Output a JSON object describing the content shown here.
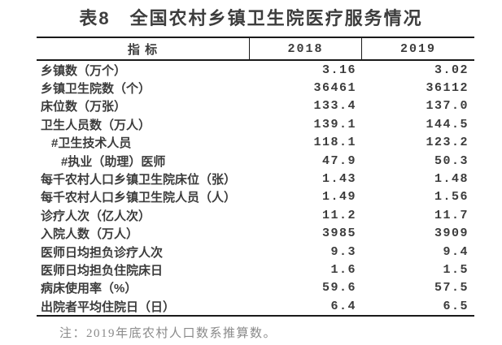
{
  "title": "表8　全国农村乡镇卫生院医疗服务情况",
  "table": {
    "header": {
      "indicator": "指 标",
      "year_2018": "2018",
      "year_2019": "2019"
    },
    "rows": [
      {
        "label": "乡镇数（万个）",
        "indent": 0,
        "y2018": "3.16",
        "y2019": "3.02"
      },
      {
        "label": "乡镇卫生院数（个）",
        "indent": 0,
        "y2018": "36461",
        "y2019": "36112"
      },
      {
        "label": "床位数（万张）",
        "indent": 0,
        "y2018": "133.4",
        "y2019": "137.0"
      },
      {
        "label": "卫生人员数（万人）",
        "indent": 0,
        "y2018": "139.1",
        "y2019": "144.5"
      },
      {
        "label": "#卫生技术人员",
        "indent": 1,
        "y2018": "118.1",
        "y2019": "123.2"
      },
      {
        "label": "#执业（助理）医师",
        "indent": 2,
        "y2018": "47.9",
        "y2019": "50.3"
      },
      {
        "label": "每千农村人口乡镇卫生院床位（张）",
        "indent": 0,
        "y2018": "1.43",
        "y2019": "1.48"
      },
      {
        "label": "每千农村人口乡镇卫生院人员（人）",
        "indent": 0,
        "y2018": "1.49",
        "y2019": "1.56"
      },
      {
        "label": "诊疗人次（亿人次）",
        "indent": 0,
        "y2018": "11.2",
        "y2019": "11.7"
      },
      {
        "label": "入院人数（万人）",
        "indent": 0,
        "y2018": "3985",
        "y2019": "3909"
      },
      {
        "label": "医师日均担负诊疗人次",
        "indent": 0,
        "y2018": "9.3",
        "y2019": "9.4"
      },
      {
        "label": "医师日均担负住院床日",
        "indent": 0,
        "y2018": "1.6",
        "y2019": "1.5"
      },
      {
        "label": "病床使用率（%）",
        "indent": 0,
        "y2018": "59.6",
        "y2019": "57.5"
      },
      {
        "label": "出院者平均住院日（日）",
        "indent": 0,
        "y2018": "6.4",
        "y2019": "6.5"
      }
    ]
  },
  "note": "注：2019年底农村人口数系推算数。",
  "colors": {
    "text": "#3c3c3c",
    "title": "#3d3d3d",
    "border": "#1a1a1a",
    "note_text": "#8a8a8a",
    "background": "#ffffff"
  }
}
